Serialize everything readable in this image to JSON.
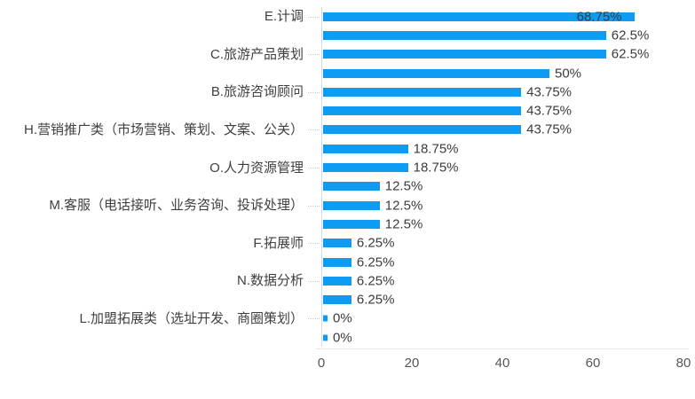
{
  "chart_data": {
    "type": "bar",
    "orientation": "horizontal",
    "title": "",
    "xlabel": "",
    "ylabel": "",
    "value_unit": "%",
    "xlim": [
      0,
      80
    ],
    "grid": false,
    "legend": "none",
    "rows": [
      {
        "label": "E.计调",
        "value": 68.75,
        "value_label": "68.75%",
        "label_inside": true
      },
      {
        "label": "",
        "value": 62.5,
        "value_label": "62.5%",
        "label_inside": false
      },
      {
        "label": "C.旅游产品策划",
        "value": 62.5,
        "value_label": "62.5%",
        "label_inside": false
      },
      {
        "label": "",
        "value": 50,
        "value_label": "50%",
        "label_inside": false
      },
      {
        "label": "B.旅游咨询顾问",
        "value": 43.75,
        "value_label": "43.75%",
        "label_inside": false
      },
      {
        "label": "",
        "value": 43.75,
        "value_label": "43.75%",
        "label_inside": false
      },
      {
        "label": "H.营销推广类（市场营销、策划、文案、公关）",
        "value": 43.75,
        "value_label": "43.75%",
        "label_inside": false
      },
      {
        "label": "",
        "value": 18.75,
        "value_label": "18.75%",
        "label_inside": false
      },
      {
        "label": "O.人力资源管理",
        "value": 18.75,
        "value_label": "18.75%",
        "label_inside": false
      },
      {
        "label": "",
        "value": 12.5,
        "value_label": "12.5%",
        "label_inside": false
      },
      {
        "label": "M.客服（电话接听、业务咨询、投诉处理）",
        "value": 12.5,
        "value_label": "12.5%",
        "label_inside": false
      },
      {
        "label": "",
        "value": 12.5,
        "value_label": "12.5%",
        "label_inside": false
      },
      {
        "label": "F.拓展师",
        "value": 6.25,
        "value_label": "6.25%",
        "label_inside": false
      },
      {
        "label": "",
        "value": 6.25,
        "value_label": "6.25%",
        "label_inside": false
      },
      {
        "label": "N.数据分析",
        "value": 6.25,
        "value_label": "6.25%",
        "label_inside": false
      },
      {
        "label": "",
        "value": 6.25,
        "value_label": "6.25%",
        "label_inside": false
      },
      {
        "label": "L.加盟拓展类（选址开发、商圈策划）",
        "value": 0,
        "value_label": "0%",
        "label_inside": false
      },
      {
        "label": "",
        "value": 0,
        "value_label": "0%",
        "label_inside": false
      }
    ],
    "x_axis": {
      "min": 0,
      "max": 80,
      "ticks": [
        "0",
        "20",
        "40",
        "60",
        "80"
      ]
    },
    "colors": {
      "bar": "#0d9cf4",
      "category_text": "#3f3f3f",
      "value_text": "#3b3b3b",
      "axis_line": "#d5dbe4",
      "tick_text": "#565656"
    }
  }
}
